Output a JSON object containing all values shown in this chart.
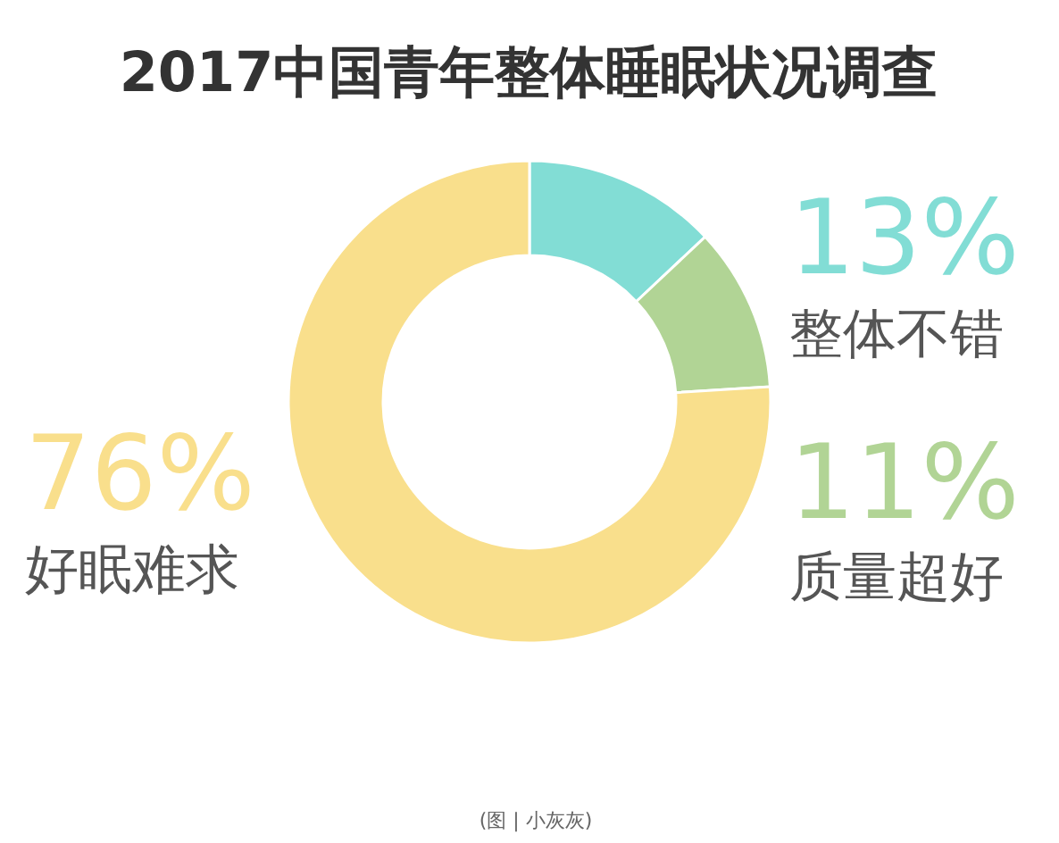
{
  "chart_data": {
    "type": "donut",
    "title": "2017中国青年整体睡眠状况调查",
    "categories": [
      "整体不错",
      "质量超好",
      "好眠难求"
    ],
    "values": [
      13,
      11,
      76
    ],
    "colors": [
      "#82ddd5",
      "#b1d495",
      "#f9df8c"
    ],
    "value_labels": [
      "13%",
      "11%",
      "76%"
    ],
    "annotations": [
      "(图 | 小灰灰)"
    ]
  }
}
